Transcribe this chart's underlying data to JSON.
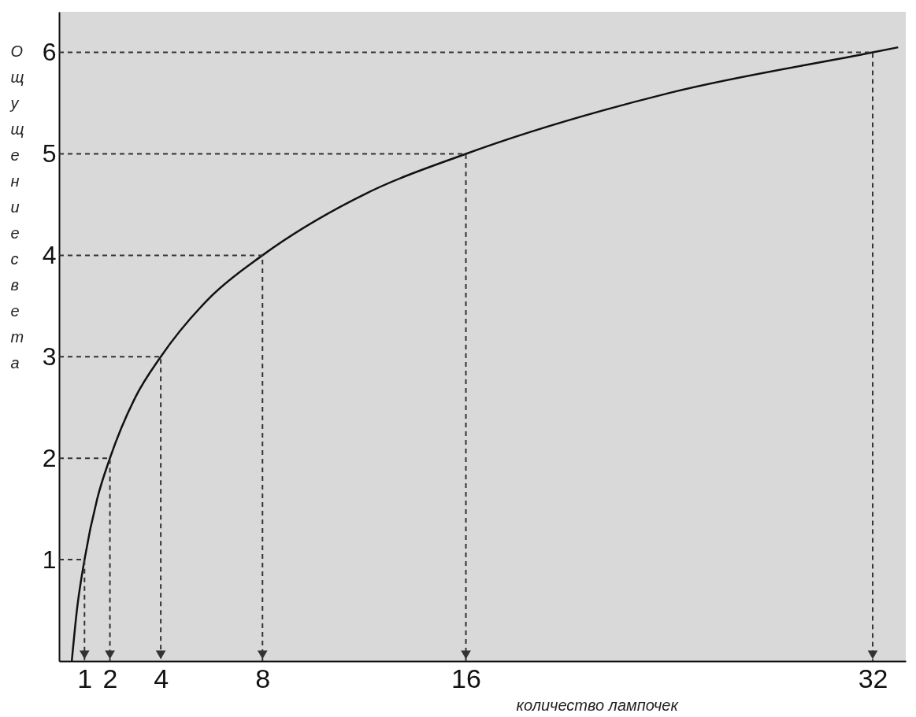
{
  "chart_data": {
    "type": "line",
    "xlabel": "количество лампочек",
    "ylabel": "Ощущение  света",
    "series": [
      {
        "color": "#111111",
        "x": [
          0.5,
          0.7,
          1,
          1.5,
          2,
          3,
          4,
          6,
          8,
          12,
          16,
          24,
          32,
          33
        ],
        "values": [
          0,
          0.5,
          1,
          1.6,
          2,
          2.6,
          3,
          3.6,
          4,
          4.6,
          5,
          5.6,
          6,
          6.05
        ]
      },
      {
        "color": "#333333",
        "line_style": "dashed",
        "x": [
          0,
          1,
          1
        ],
        "values": [
          1,
          1,
          0
        ]
      },
      {
        "color": "#333333",
        "line_style": "dashed",
        "x": [
          0,
          2,
          2
        ],
        "values": [
          2,
          2,
          0
        ]
      },
      {
        "color": "#333333",
        "line_style": "dashed",
        "x": [
          0,
          4,
          4
        ],
        "values": [
          3,
          3,
          0
        ]
      },
      {
        "color": "#333333",
        "line_style": "dashed",
        "x": [
          0,
          8,
          8
        ],
        "values": [
          4,
          4,
          0
        ]
      },
      {
        "color": "#333333",
        "line_style": "dashed",
        "x": [
          0,
          16,
          16
        ],
        "values": [
          5,
          5,
          0
        ]
      },
      {
        "color": "#333333",
        "line_style": "dashed",
        "x": [
          0,
          32,
          32
        ],
        "values": [
          6,
          6,
          0
        ]
      }
    ],
    "xlim": [
      0,
      33.3
    ],
    "xticks": [
      1,
      2,
      4,
      8,
      16,
      32
    ],
    "ylim": [
      0,
      6.4
    ],
    "yticks": [
      1,
      2,
      3,
      4,
      5,
      6
    ],
    "line_style": "solid",
    "marker": "none"
  }
}
